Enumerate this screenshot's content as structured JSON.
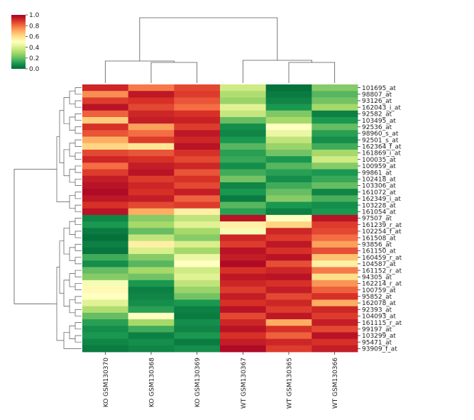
{
  "chart_data": {
    "type": "heatmap",
    "title": "",
    "xlabel": "",
    "ylabel": "",
    "colormap": "RdYlGn_r",
    "color_stops": [
      "#006837",
      "#1a9850",
      "#66bd63",
      "#a6d96a",
      "#d9ef8b",
      "#ffffbf",
      "#fee08b",
      "#fdae61",
      "#f46d43",
      "#d73027",
      "#a50026"
    ],
    "colorbar": {
      "min": 0.0,
      "max": 1.0,
      "ticks": [
        "0.0",
        "0.2",
        "0.4",
        "0.6",
        "0.8",
        "1.0"
      ]
    },
    "columns": [
      "KO GSM130370",
      "KO GSM130368",
      "KO GSM130369",
      "WT GSM130367",
      "WT GSM130365",
      "WT GSM130366"
    ],
    "row_labels": [
      "101695_at",
      "98807_at",
      "93126_at",
      "162043_i_at",
      "92582_at",
      "103495_at",
      "92536_at",
      "98960_s_at",
      "92501_s_at",
      "162364_f_at",
      "161869_i_at",
      "100035_at",
      "100959_at",
      "99861_at",
      "102418_at",
      "103306_at",
      "161072_at",
      "162349_i_at",
      "103228_at",
      "161054_at",
      "97507_at",
      "161239_r_at",
      "102254_f_at",
      "161508_at",
      "93856_at",
      "161150_at",
      "160459_r_at",
      "104587_at",
      "161152_r_at",
      "94305_at",
      "162214_r_at",
      "100759_at",
      "95852_at",
      "162078_at",
      "92393_at",
      "104093_at",
      "161115_r_at",
      "99197_at",
      "103299_at",
      "95471_at",
      "93909_f_at"
    ],
    "values": [
      [
        0.92,
        0.78,
        0.86,
        0.38,
        0.02,
        0.25
      ],
      [
        0.75,
        0.95,
        0.88,
        0.32,
        0.04,
        0.18
      ],
      [
        0.88,
        0.9,
        0.84,
        0.28,
        0.06,
        0.22
      ],
      [
        0.96,
        0.86,
        0.8,
        0.42,
        0.1,
        0.3
      ],
      [
        0.82,
        0.92,
        0.9,
        0.36,
        0.24,
        0.05
      ],
      [
        0.64,
        0.94,
        0.93,
        0.2,
        0.3,
        0.1
      ],
      [
        0.9,
        0.72,
        0.88,
        0.08,
        0.5,
        0.2
      ],
      [
        0.84,
        0.8,
        0.95,
        0.06,
        0.45,
        0.12
      ],
      [
        0.7,
        0.88,
        0.92,
        0.1,
        0.35,
        0.08
      ],
      [
        0.62,
        0.58,
        0.96,
        0.18,
        0.28,
        0.15
      ],
      [
        0.86,
        0.84,
        0.9,
        0.12,
        0.22,
        0.3
      ],
      [
        0.92,
        0.9,
        0.86,
        0.14,
        0.1,
        0.38
      ],
      [
        0.8,
        0.94,
        0.92,
        0.08,
        0.18,
        0.25
      ],
      [
        0.88,
        0.96,
        0.84,
        0.15,
        0.12,
        0.1
      ],
      [
        0.94,
        0.88,
        0.9,
        0.22,
        0.08,
        0.14
      ],
      [
        0.96,
        0.92,
        0.86,
        0.06,
        0.15,
        0.2
      ],
      [
        0.98,
        0.9,
        0.94,
        0.1,
        0.2,
        0.06
      ],
      [
        0.95,
        0.94,
        0.82,
        0.04,
        0.25,
        0.16
      ],
      [
        0.9,
        0.86,
        0.88,
        0.18,
        0.1,
        0.08
      ],
      [
        0.96,
        0.7,
        0.55,
        0.12,
        0.05,
        0.1
      ],
      [
        0.06,
        0.25,
        0.35,
        0.96,
        0.5,
        0.96
      ],
      [
        0.1,
        0.3,
        0.42,
        0.55,
        0.62,
        0.88
      ],
      [
        0.04,
        0.2,
        0.3,
        0.48,
        0.92,
        0.86
      ],
      [
        0.02,
        0.35,
        0.25,
        0.92,
        0.88,
        0.8
      ],
      [
        0.05,
        0.55,
        0.4,
        0.88,
        0.95,
        0.72
      ],
      [
        0.03,
        0.4,
        0.3,
        0.96,
        0.9,
        0.85
      ],
      [
        0.15,
        0.25,
        0.45,
        0.94,
        0.96,
        0.66
      ],
      [
        0.08,
        0.18,
        0.5,
        0.98,
        0.85,
        0.55
      ],
      [
        0.2,
        0.3,
        0.38,
        0.9,
        0.92,
        0.78
      ],
      [
        0.25,
        0.22,
        0.42,
        0.95,
        0.96,
        0.6
      ],
      [
        0.48,
        0.1,
        0.35,
        0.92,
        0.9,
        0.74
      ],
      [
        0.52,
        0.05,
        0.28,
        0.88,
        0.94,
        0.82
      ],
      [
        0.5,
        0.06,
        0.22,
        0.94,
        0.86,
        0.9
      ],
      [
        0.42,
        0.08,
        0.1,
        0.9,
        0.92,
        0.7
      ],
      [
        0.32,
        0.12,
        0.05,
        0.96,
        0.88,
        0.92
      ],
      [
        0.2,
        0.5,
        0.04,
        0.86,
        0.95,
        0.88
      ],
      [
        0.12,
        0.3,
        0.08,
        0.92,
        0.7,
        0.94
      ],
      [
        0.08,
        0.15,
        0.06,
        0.96,
        0.9,
        0.86
      ],
      [
        0.1,
        0.05,
        0.1,
        0.9,
        0.82,
        0.96
      ],
      [
        0.06,
        0.08,
        0.04,
        0.94,
        0.92,
        0.9
      ],
      [
        0.04,
        0.06,
        0.08,
        0.98,
        0.88,
        0.94
      ]
    ]
  }
}
